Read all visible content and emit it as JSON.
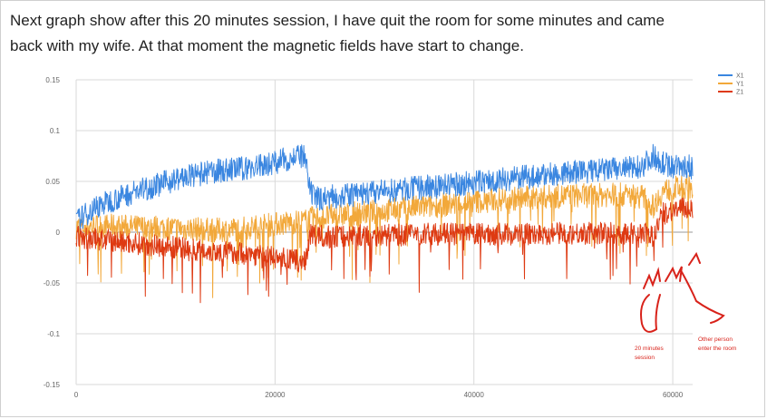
{
  "caption": {
    "line1": "Next graph show after this 20 minutes session, I have quit the room for some minutes and came",
    "line2": "back with my wife. At that moment the magnetic fields have start to change."
  },
  "chart_data": {
    "type": "line",
    "x": [
      0,
      2000,
      4000,
      6000,
      8000,
      10000,
      12000,
      14000,
      16000,
      18000,
      20000,
      22000,
      23000,
      23500,
      24000,
      26000,
      28000,
      30000,
      32000,
      34000,
      36000,
      38000,
      40000,
      42000,
      44000,
      46000,
      48000,
      50000,
      52000,
      54000,
      56000,
      57000,
      58000,
      59000,
      60000,
      62000
    ],
    "series": [
      {
        "name": "X1",
        "color": "#3a86e0",
        "values": [
          0.01,
          0.025,
          0.033,
          0.04,
          0.046,
          0.052,
          0.056,
          0.06,
          0.062,
          0.064,
          0.069,
          0.074,
          0.074,
          0.04,
          0.033,
          0.035,
          0.037,
          0.039,
          0.041,
          0.043,
          0.045,
          0.047,
          0.049,
          0.051,
          0.053,
          0.055,
          0.057,
          0.059,
          0.06,
          0.062,
          0.063,
          0.066,
          0.075,
          0.068,
          0.065,
          0.064
        ]
      },
      {
        "name": "Y1",
        "color": "#f2a83a",
        "values": [
          0.005,
          0.006,
          0.006,
          0.005,
          0.005,
          0.004,
          0.003,
          0.002,
          0.003,
          0.005,
          0.008,
          0.01,
          0.011,
          0.013,
          0.014,
          0.016,
          0.018,
          0.02,
          0.022,
          0.024,
          0.026,
          0.028,
          0.03,
          0.032,
          0.033,
          0.034,
          0.035,
          0.036,
          0.036,
          0.037,
          0.036,
          0.035,
          0.025,
          0.04,
          0.043,
          0.045
        ]
      },
      {
        "name": "Z1",
        "color": "#de3a12",
        "values": [
          -0.005,
          -0.007,
          -0.009,
          -0.011,
          -0.013,
          -0.015,
          -0.017,
          -0.019,
          -0.02,
          -0.022,
          -0.025,
          -0.028,
          -0.03,
          -0.002,
          -0.004,
          -0.004,
          -0.003,
          -0.003,
          -0.003,
          -0.002,
          -0.002,
          -0.002,
          -0.002,
          -0.002,
          -0.002,
          -0.002,
          -0.001,
          -0.001,
          -0.001,
          -0.001,
          -0.001,
          -0.001,
          -0.004,
          0.018,
          0.022,
          0.024
        ]
      }
    ],
    "xticks": [
      "0",
      "20000",
      "40000",
      "60000"
    ],
    "xtick_values": [
      0,
      20000,
      40000,
      60000
    ],
    "yticks": [
      "0.15",
      "0.1",
      "0.05",
      "0",
      "-0.05",
      "-0.1",
      "-0.15"
    ],
    "ytick_values": [
      0.15,
      0.1,
      0.05,
      0,
      -0.05,
      -0.1,
      -0.15
    ],
    "xlim": [
      0,
      62000
    ],
    "ylim": [
      -0.15,
      0.15
    ],
    "grid": true,
    "legend_position": "top-right",
    "annotations": [
      {
        "text_lines": [
          "20 minutes",
          "session"
        ],
        "x": 57000,
        "color": "#d8221a"
      },
      {
        "text_lines": [
          "Other person",
          "enter the room"
        ],
        "x": 62000,
        "color": "#d8221a"
      }
    ]
  }
}
